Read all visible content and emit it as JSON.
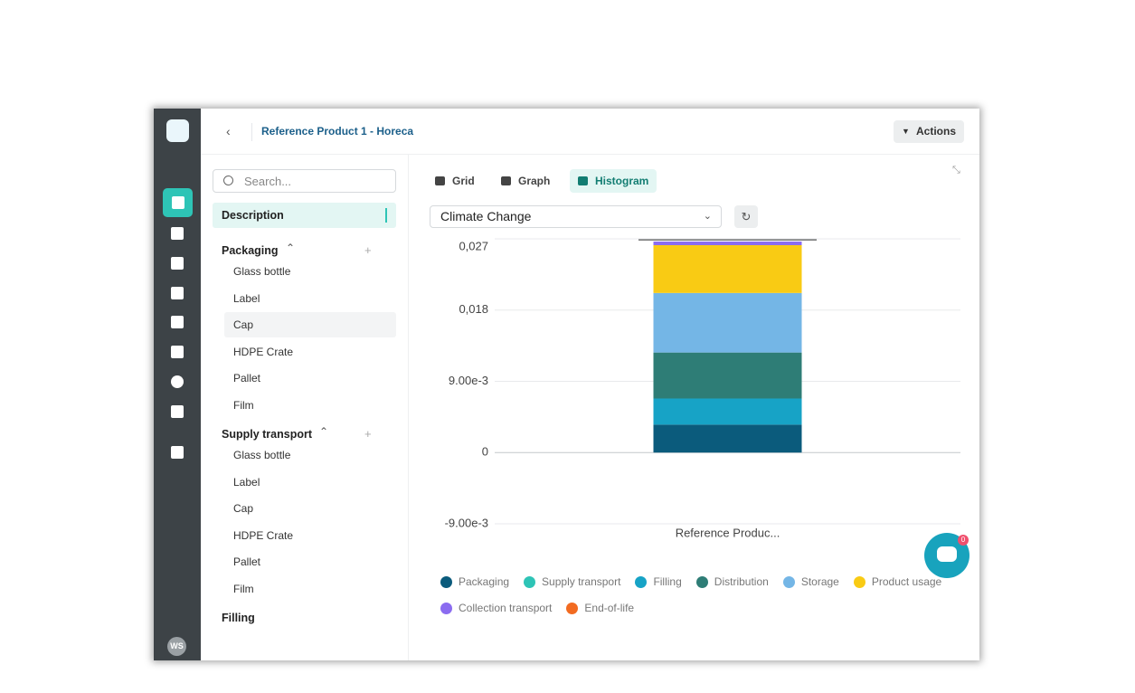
{
  "header": {
    "title": "Reference Product 1 - Horeca",
    "actions": "Actions"
  },
  "sidebar": {
    "avatar": "WS"
  },
  "tree": {
    "search_placeholder": "Search...",
    "description": "Description",
    "sections": [
      {
        "title": "Packaging",
        "items": [
          "Glass bottle",
          "Label",
          "Cap",
          "HDPE Crate",
          "Pallet",
          "Film"
        ]
      },
      {
        "title": "Supply transport",
        "items": [
          "Glass bottle",
          "Label",
          "Cap",
          "HDPE Crate",
          "Pallet",
          "Film"
        ]
      },
      {
        "title": "Filling",
        "items": []
      }
    ]
  },
  "tabs": [
    "Grid",
    "Graph",
    "Histogram"
  ],
  "active_tab": 2,
  "impact_select": "Climate Change",
  "chat_badge": "0",
  "chart_data": {
    "type": "stacked_bar",
    "categories": [
      "Reference Produc..."
    ],
    "series": [
      {
        "name": "Packaging",
        "color": "#0b5b7c",
        "values": [
          0.00353
        ]
      },
      {
        "name": "Supply transport",
        "color": "#2ec4b6",
        "values": [
          0
        ]
      },
      {
        "name": "Filling",
        "color": "#17a3c6",
        "values": [
          0.0033
        ]
      },
      {
        "name": "Distribution",
        "color": "#2e7d76",
        "values": [
          0.00581
        ]
      },
      {
        "name": "Storage",
        "color": "#74b6e6",
        "values": [
          0.00752
        ]
      },
      {
        "name": "Product usage",
        "color": "#f9cb14",
        "values": [
          0.00604
        ]
      },
      {
        "name": "Collection transport",
        "color": "#8b6cf0",
        "values": [
          0.00046
        ]
      },
      {
        "name": "End-of-life",
        "color": "#f26b21",
        "values": [
          0
        ]
      }
    ],
    "ylim": [
      -0.009,
      0.027
    ],
    "yticks": [
      {
        "value": -0.009,
        "label": "-9.00e-3"
      },
      0,
      {
        "value": 0.009,
        "label": "9.00e-3"
      },
      {
        "value": 0.018,
        "label": "0,018"
      },
      {
        "value": 0.027,
        "label": "0,027"
      }
    ],
    "grid": true
  }
}
